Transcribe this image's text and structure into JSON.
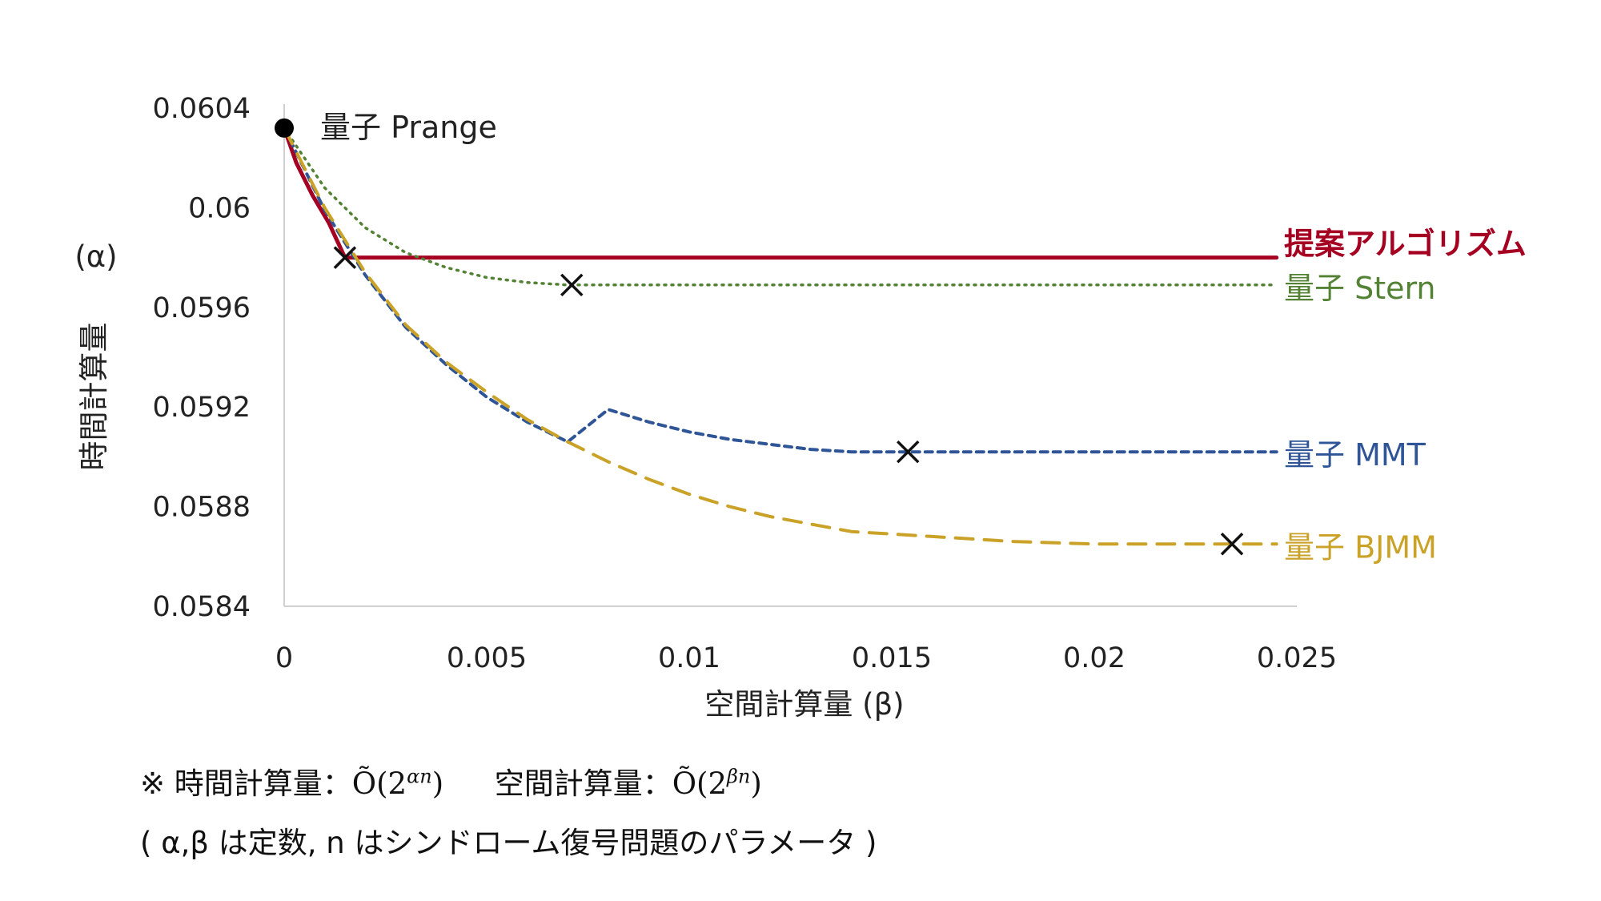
{
  "chart_data": {
    "type": "line",
    "xlabel": "空間計算量 (β)",
    "ylabel_vertical": "時間計算量",
    "ylabel_symbol": "(α)",
    "xlim": [
      0,
      0.025
    ],
    "ylim": [
      0.0584,
      0.0604
    ],
    "x_ticks": [
      "0",
      "0.005",
      "0.01",
      "0.015",
      "0.02",
      "0.025"
    ],
    "y_ticks": [
      "0.0604",
      "0.06",
      "0.0596",
      "0.0592",
      "0.0588",
      "0.0584"
    ],
    "x_tick_values": [
      0,
      0.005,
      0.01,
      0.015,
      0.02,
      0.025
    ],
    "y_tick_values": [
      0.0604,
      0.06,
      0.0596,
      0.0592,
      0.0588,
      0.0584
    ],
    "grid": false,
    "start_point": {
      "label": "量子 Prange",
      "x": 0,
      "y": 0.06032
    },
    "series": [
      {
        "name": "提案アルゴリズム",
        "color": "#A50021",
        "style": "solid",
        "bold_label": true,
        "points": [
          [
            0,
            0.06032
          ],
          [
            0.0003,
            0.06018
          ],
          [
            0.0007,
            0.06005
          ],
          [
            0.0011,
            0.05994
          ],
          [
            0.0015,
            0.0598
          ],
          [
            0.0245,
            0.0598
          ]
        ],
        "marker": {
          "x": 0.0015,
          "y": 0.0598
        }
      },
      {
        "name": "量子 Stern",
        "color": "#548235",
        "style": "dotted",
        "points": [
          [
            0,
            0.06032
          ],
          [
            0.001,
            0.06008
          ],
          [
            0.002,
            0.05992
          ],
          [
            0.003,
            0.05982
          ],
          [
            0.004,
            0.05976
          ],
          [
            0.005,
            0.05972
          ],
          [
            0.006,
            0.0597
          ],
          [
            0.007,
            0.05969
          ],
          [
            0.0245,
            0.05969
          ]
        ],
        "marker": {
          "x": 0.0071,
          "y": 0.05969
        }
      },
      {
        "name": "量子 MMT",
        "color": "#2F5597",
        "style": "dashed-short",
        "points": [
          [
            0,
            0.06032
          ],
          [
            0.001,
            0.05999
          ],
          [
            0.002,
            0.05973
          ],
          [
            0.003,
            0.05952
          ],
          [
            0.004,
            0.05937
          ],
          [
            0.005,
            0.05924
          ],
          [
            0.006,
            0.05914
          ],
          [
            0.007,
            0.05906
          ],
          [
            0.008,
            0.05919
          ],
          [
            0.009,
            0.05914
          ],
          [
            0.01,
            0.0591
          ],
          [
            0.011,
            0.05907
          ],
          [
            0.012,
            0.05905
          ],
          [
            0.013,
            0.05903
          ],
          [
            0.014,
            0.05902
          ],
          [
            0.0154,
            0.05902
          ],
          [
            0.0245,
            0.05902
          ]
        ],
        "marker": {
          "x": 0.0154,
          "y": 0.05902
        }
      },
      {
        "name": "量子 BJMM",
        "color": "#C9A227",
        "style": "dashed-long",
        "points": [
          [
            0,
            0.06032
          ],
          [
            0.001,
            0.06
          ],
          [
            0.002,
            0.05974
          ],
          [
            0.003,
            0.05953
          ],
          [
            0.004,
            0.05938
          ],
          [
            0.005,
            0.05926
          ],
          [
            0.006,
            0.05915
          ],
          [
            0.007,
            0.05906
          ],
          [
            0.008,
            0.05898
          ],
          [
            0.009,
            0.05891
          ],
          [
            0.01,
            0.05885
          ],
          [
            0.011,
            0.0588
          ],
          [
            0.012,
            0.05876
          ],
          [
            0.013,
            0.05873
          ],
          [
            0.014,
            0.0587
          ],
          [
            0.015,
            0.05869
          ],
          [
            0.016,
            0.05868
          ],
          [
            0.018,
            0.05866
          ],
          [
            0.02,
            0.05865
          ],
          [
            0.0234,
            0.05865
          ],
          [
            0.0245,
            0.05865
          ]
        ],
        "marker": {
          "x": 0.0234,
          "y": 0.05865
        }
      }
    ]
  },
  "notes": {
    "line1_prefix": "※ 時間計算量：",
    "line1_time_expr": "Õ(2",
    "line1_time_sup": "αn",
    "line1_time_close": ")",
    "line1_space_label": "空間計算量：",
    "line1_space_expr": "Õ(2",
    "line1_space_sup": "βn",
    "line1_space_close": ")",
    "line2": "( α,β は定数, n はシンドローム復号問題のパラメータ )"
  }
}
